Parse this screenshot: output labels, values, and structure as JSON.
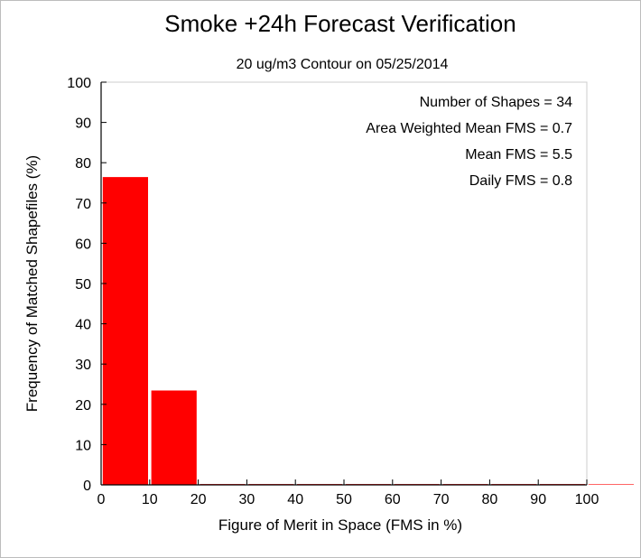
{
  "chart_data": {
    "type": "bar",
    "title": "Smoke +24h Forecast Verification",
    "subtitle": "20 ug/m3 Contour on 05/25/2014",
    "xlabel": "Figure of Merit in Space (FMS in %)",
    "ylabel": "Frequency of Matched Shapefiles (%)",
    "xlim": [
      0,
      100
    ],
    "ylim": [
      0,
      100
    ],
    "x_ticks": [
      "0",
      "10",
      "20",
      "30",
      "40",
      "50",
      "60",
      "70",
      "80",
      "90",
      "100"
    ],
    "y_ticks": [
      "0",
      "10",
      "20",
      "30",
      "40",
      "50",
      "60",
      "70",
      "80",
      "90",
      "100"
    ],
    "bins": [
      {
        "range": [
          0,
          10
        ],
        "value": 76.5
      },
      {
        "range": [
          10,
          20
        ],
        "value": 23.5
      },
      {
        "range": [
          20,
          30
        ],
        "value": 0
      },
      {
        "range": [
          30,
          40
        ],
        "value": 0
      },
      {
        "range": [
          40,
          50
        ],
        "value": 0
      },
      {
        "range": [
          50,
          60
        ],
        "value": 0
      },
      {
        "range": [
          60,
          70
        ],
        "value": 0
      },
      {
        "range": [
          70,
          80
        ],
        "value": 0
      },
      {
        "range": [
          80,
          90
        ],
        "value": 0
      },
      {
        "range": [
          90,
          100
        ],
        "value": 0
      },
      {
        "range": [
          100,
          110
        ],
        "value": 0
      }
    ],
    "bar_color": "#ff0000",
    "annotations": [
      "Number of Shapes = 34",
      "Area Weighted Mean FMS = 0.7",
      "Mean FMS = 5.5",
      "Daily FMS = 0.8"
    ],
    "legend": "none",
    "grid": false
  }
}
